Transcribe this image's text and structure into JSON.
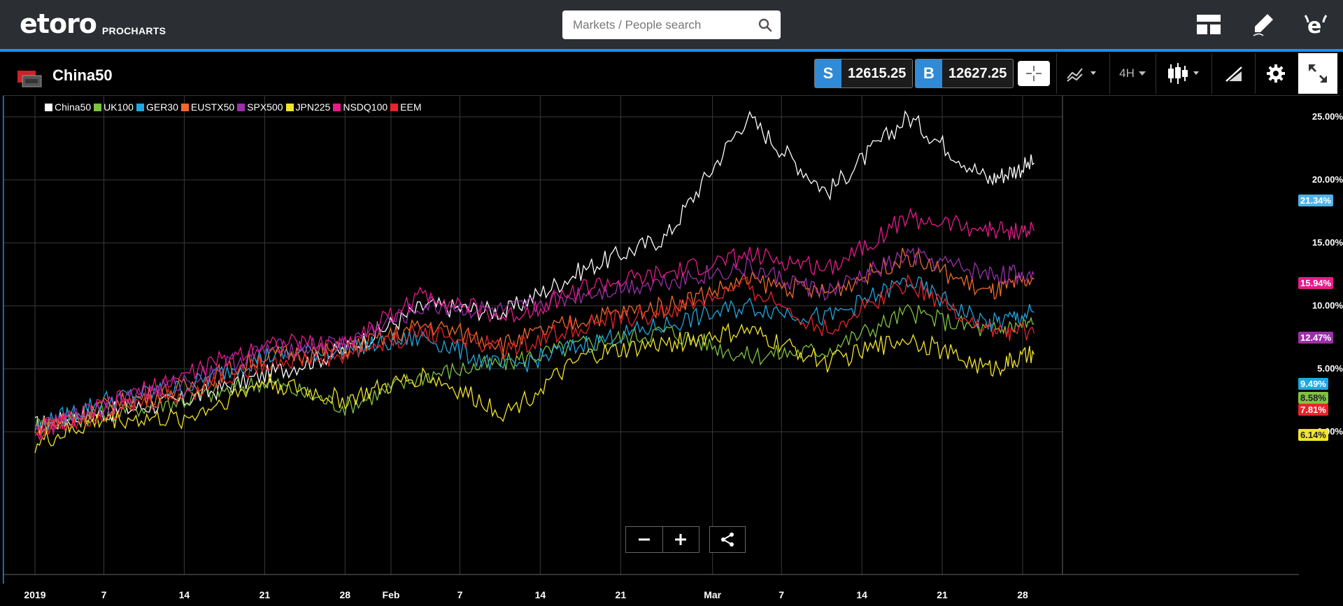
{
  "brand": {
    "logo": "etoro",
    "sub": "PROCHARTS"
  },
  "search": {
    "placeholder": "Markets / People search"
  },
  "header_icons": [
    "layout-icon",
    "pencil-icon",
    "etoro-e-icon"
  ],
  "instrument": {
    "name": "China50"
  },
  "prices": {
    "sell_label": "S",
    "sell": "12615.25",
    "buy_label": "B",
    "buy": "12627.25"
  },
  "toolbar": {
    "timeframe": "4H"
  },
  "colors": {
    "China50": "#ffffff",
    "UK100": "#7ec242",
    "GER30": "#1fa7e0",
    "EUSTX50": "#f06a2d",
    "SPX500": "#9b30a8",
    "JPN225": "#f2e52a",
    "NSDQ100": "#e81a8c",
    "EEM": "#e8242b",
    "accent": "#2f8bd8"
  },
  "legend": [
    "China50",
    "UK100",
    "GER30",
    "EUSTX50",
    "SPX500",
    "JPN225",
    "NSDQ100",
    "EEM"
  ],
  "yaxis": [
    "25.00%",
    "20.00%",
    "15.00%",
    "10.00%",
    "5.00%",
    "0.00%"
  ],
  "xaxis": [
    "2019",
    "7",
    "14",
    "21",
    "28",
    "Feb",
    "7",
    "14",
    "21",
    "Mar",
    "7",
    "14",
    "21",
    "28"
  ],
  "last_values": [
    {
      "series": "China50",
      "label": "21.34%"
    },
    {
      "series": "NSDQ100",
      "label": "15.94%"
    },
    {
      "series": "SPX500",
      "label": "12.47%"
    },
    {
      "series": "GER30",
      "label": "9.49%"
    },
    {
      "series": "UK100",
      "label": "8.58%"
    },
    {
      "series": "EEM",
      "label": "7.81%"
    },
    {
      "series": "JPN225",
      "label": "6.14%"
    }
  ],
  "chart_data": {
    "type": "line",
    "y_unit": "%",
    "ylim": [
      -4,
      28
    ],
    "x": [
      "2019-01-01",
      "2019-01-07",
      "2019-01-14",
      "2019-01-21",
      "2019-01-28",
      "2019-02-04",
      "2019-02-11",
      "2019-02-18",
      "2019-02-25",
      "2019-03-04",
      "2019-03-11",
      "2019-03-18",
      "2019-03-25",
      "2019-03-29"
    ],
    "series": [
      {
        "name": "China50",
        "values": [
          0.5,
          1.5,
          2.5,
          4.5,
          6.5,
          10.0,
          9.5,
          13.0,
          15.5,
          25.0,
          19.0,
          25.0,
          20.0,
          21.34
        ]
      },
      {
        "name": "UK100",
        "values": [
          0.5,
          1.5,
          2.5,
          4.0,
          2.0,
          4.5,
          5.5,
          7.0,
          8.0,
          6.0,
          6.5,
          9.5,
          8.0,
          8.58
        ]
      },
      {
        "name": "GER30",
        "values": [
          0.3,
          2.5,
          3.5,
          6.0,
          6.5,
          7.5,
          5.0,
          7.0,
          8.5,
          10.0,
          9.0,
          12.0,
          8.5,
          9.49
        ]
      },
      {
        "name": "EUSTX50",
        "values": [
          0.3,
          2.0,
          3.5,
          6.0,
          6.5,
          8.5,
          7.0,
          9.0,
          10.0,
          12.0,
          11.0,
          14.0,
          11.0,
          12.1
        ]
      },
      {
        "name": "SPX500",
        "values": [
          0.0,
          2.0,
          4.0,
          6.5,
          7.0,
          10.0,
          9.5,
          11.0,
          12.0,
          13.0,
          11.0,
          14.0,
          12.5,
          12.47
        ]
      },
      {
        "name": "JPN225",
        "values": [
          -1.0,
          1.0,
          1.0,
          4.0,
          2.5,
          4.5,
          1.5,
          6.0,
          7.0,
          8.0,
          5.5,
          7.5,
          5.0,
          6.14
        ]
      },
      {
        "name": "NSDQ100",
        "values": [
          0.0,
          2.0,
          4.5,
          7.0,
          7.0,
          11.0,
          9.0,
          11.5,
          12.5,
          14.0,
          13.0,
          17.0,
          16.0,
          15.94
        ]
      },
      {
        "name": "EEM",
        "values": [
          0.0,
          1.5,
          3.0,
          5.5,
          6.0,
          8.0,
          6.5,
          8.5,
          9.5,
          11.5,
          8.0,
          12.0,
          8.0,
          7.81
        ]
      }
    ]
  }
}
